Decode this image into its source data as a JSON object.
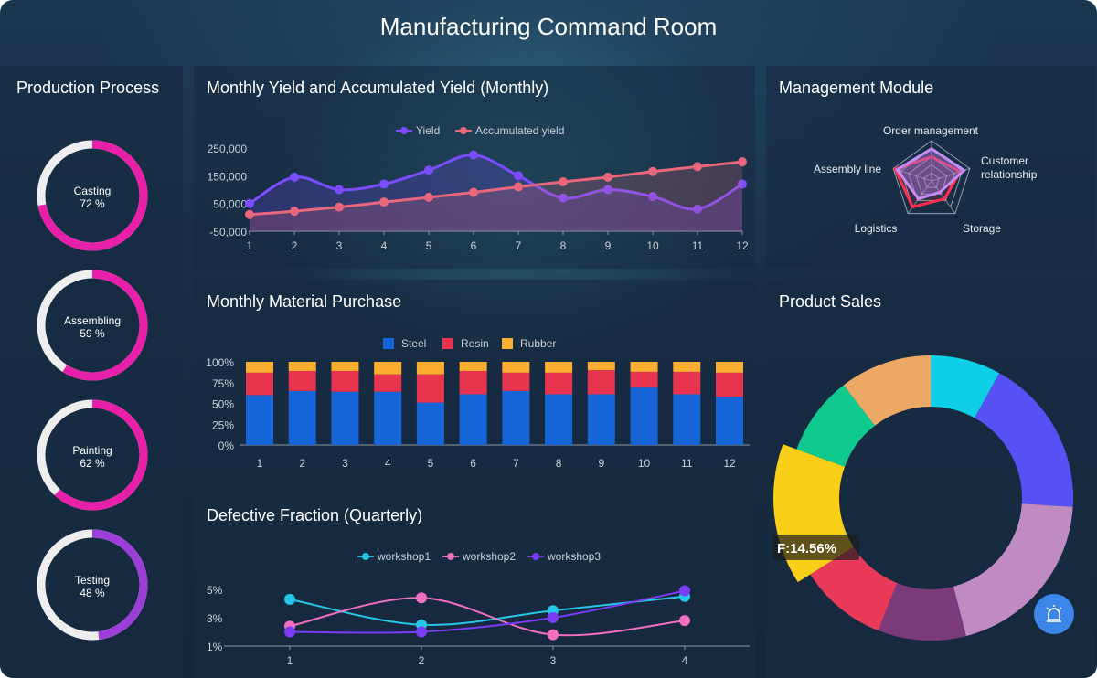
{
  "title": "Manufacturing Command Room",
  "colors": {
    "gauge": "#e81fa8",
    "gauge_testing": "#9b3fd8",
    "track": "#eeeeee"
  },
  "production": {
    "title": "Production Process",
    "items": [
      {
        "label": "Casting",
        "value": 72,
        "text": "72 %"
      },
      {
        "label": "Assembling",
        "value": 59,
        "text": "59 %"
      },
      {
        "label": "Painting",
        "value": 62,
        "text": "62 %"
      },
      {
        "label": "Testing",
        "value": 48,
        "text": "48 %"
      }
    ]
  },
  "yield": {
    "title": "Monthly Yield and Accumulated Yield (Monthly)"
  },
  "material": {
    "title": "Monthly Material Purchase"
  },
  "defect": {
    "title": "Defective Fraction (Quarterly)"
  },
  "management": {
    "title": "Management Module"
  },
  "sales": {
    "title": "Product Sales",
    "tooltip": "F:14.56%"
  },
  "chart_data": [
    {
      "type": "line",
      "categories": [
        "1",
        "2",
        "3",
        "4",
        "5",
        "6",
        "7",
        "8",
        "9",
        "10",
        "11",
        "12"
      ],
      "ylim": [
        -50000,
        250000
      ],
      "yticks": [
        "-50,000",
        "50,000",
        "150,000",
        "250,000"
      ],
      "legend": "top",
      "series": [
        {
          "name": "Yield",
          "color": "#7b4dff",
          "values": [
            50000,
            145000,
            100000,
            120000,
            170000,
            225000,
            150000,
            70000,
            100000,
            75000,
            30000,
            120000
          ]
        },
        {
          "name": "Accumulated yield",
          "color": "#e8677c",
          "values": [
            10000,
            22000,
            37000,
            55000,
            72000,
            90000,
            110000,
            128000,
            145000,
            165000,
            183000,
            200000
          ]
        }
      ]
    },
    {
      "type": "bar",
      "stacked": true,
      "categories": [
        "1",
        "2",
        "3",
        "4",
        "5",
        "6",
        "7",
        "8",
        "9",
        "10",
        "11",
        "12"
      ],
      "ylim": [
        0,
        100
      ],
      "yticks": [
        "0%",
        "25%",
        "50%",
        "75%",
        "100%"
      ],
      "legend": "top",
      "series": [
        {
          "name": "Steel",
          "color": "#1565d8",
          "values": [
            60,
            65,
            64,
            64,
            51,
            61,
            65,
            61,
            61,
            69,
            61,
            58
          ]
        },
        {
          "name": "Resin",
          "color": "#e8344f",
          "values": [
            27,
            24,
            25,
            21,
            34,
            28,
            22,
            26,
            29,
            19,
            27,
            29
          ]
        },
        {
          "name": "Rubber",
          "color": "#fbae30",
          "values": [
            13,
            11,
            11,
            15,
            15,
            11,
            13,
            13,
            10,
            12,
            12,
            13
          ]
        }
      ]
    },
    {
      "type": "line",
      "categories": [
        "1",
        "2",
        "3",
        "4"
      ],
      "ylim": [
        1,
        5
      ],
      "yticks": [
        "1%",
        "3%",
        "5%"
      ],
      "legend": "top",
      "series": [
        {
          "name": "workshop1",
          "color": "#26c6e6",
          "values": [
            4.3,
            2.5,
            3.5,
            4.5
          ]
        },
        {
          "name": "workshop2",
          "color": "#f06fbe",
          "values": [
            2.4,
            4.4,
            1.8,
            2.8
          ]
        },
        {
          "name": "workshop3",
          "color": "#7a3cf5",
          "values": [
            2.0,
            2.0,
            3.0,
            4.9
          ]
        }
      ]
    },
    {
      "type": "radar",
      "indicators": [
        "Order management",
        "Customer relationship",
        "Storage",
        "Logistics",
        "Assembly line"
      ],
      "series": [
        {
          "color": "#ff2e4d",
          "values": [
            0.6,
            0.75,
            0.55,
            0.8,
            0.95
          ]
        },
        {
          "color": "#c58cf5",
          "values": [
            0.8,
            0.85,
            0.35,
            0.55,
            0.9
          ]
        }
      ]
    },
    {
      "type": "pie",
      "donut": true,
      "highlighted": "F",
      "slices": [
        {
          "color": "#0fcfe6",
          "value": 8
        },
        {
          "color": "#5650f5",
          "value": 18
        },
        {
          "color": "#c08bc0",
          "value": 20
        },
        {
          "color": "#7b3b7a",
          "value": 10
        },
        {
          "color": "#ea3a5a",
          "value": 10
        },
        {
          "name": "F",
          "color": "#f9cf17",
          "value": 14.56
        },
        {
          "color": "#10c98f",
          "value": 9
        },
        {
          "color": "#eea865",
          "value": 10.44
        }
      ]
    }
  ]
}
